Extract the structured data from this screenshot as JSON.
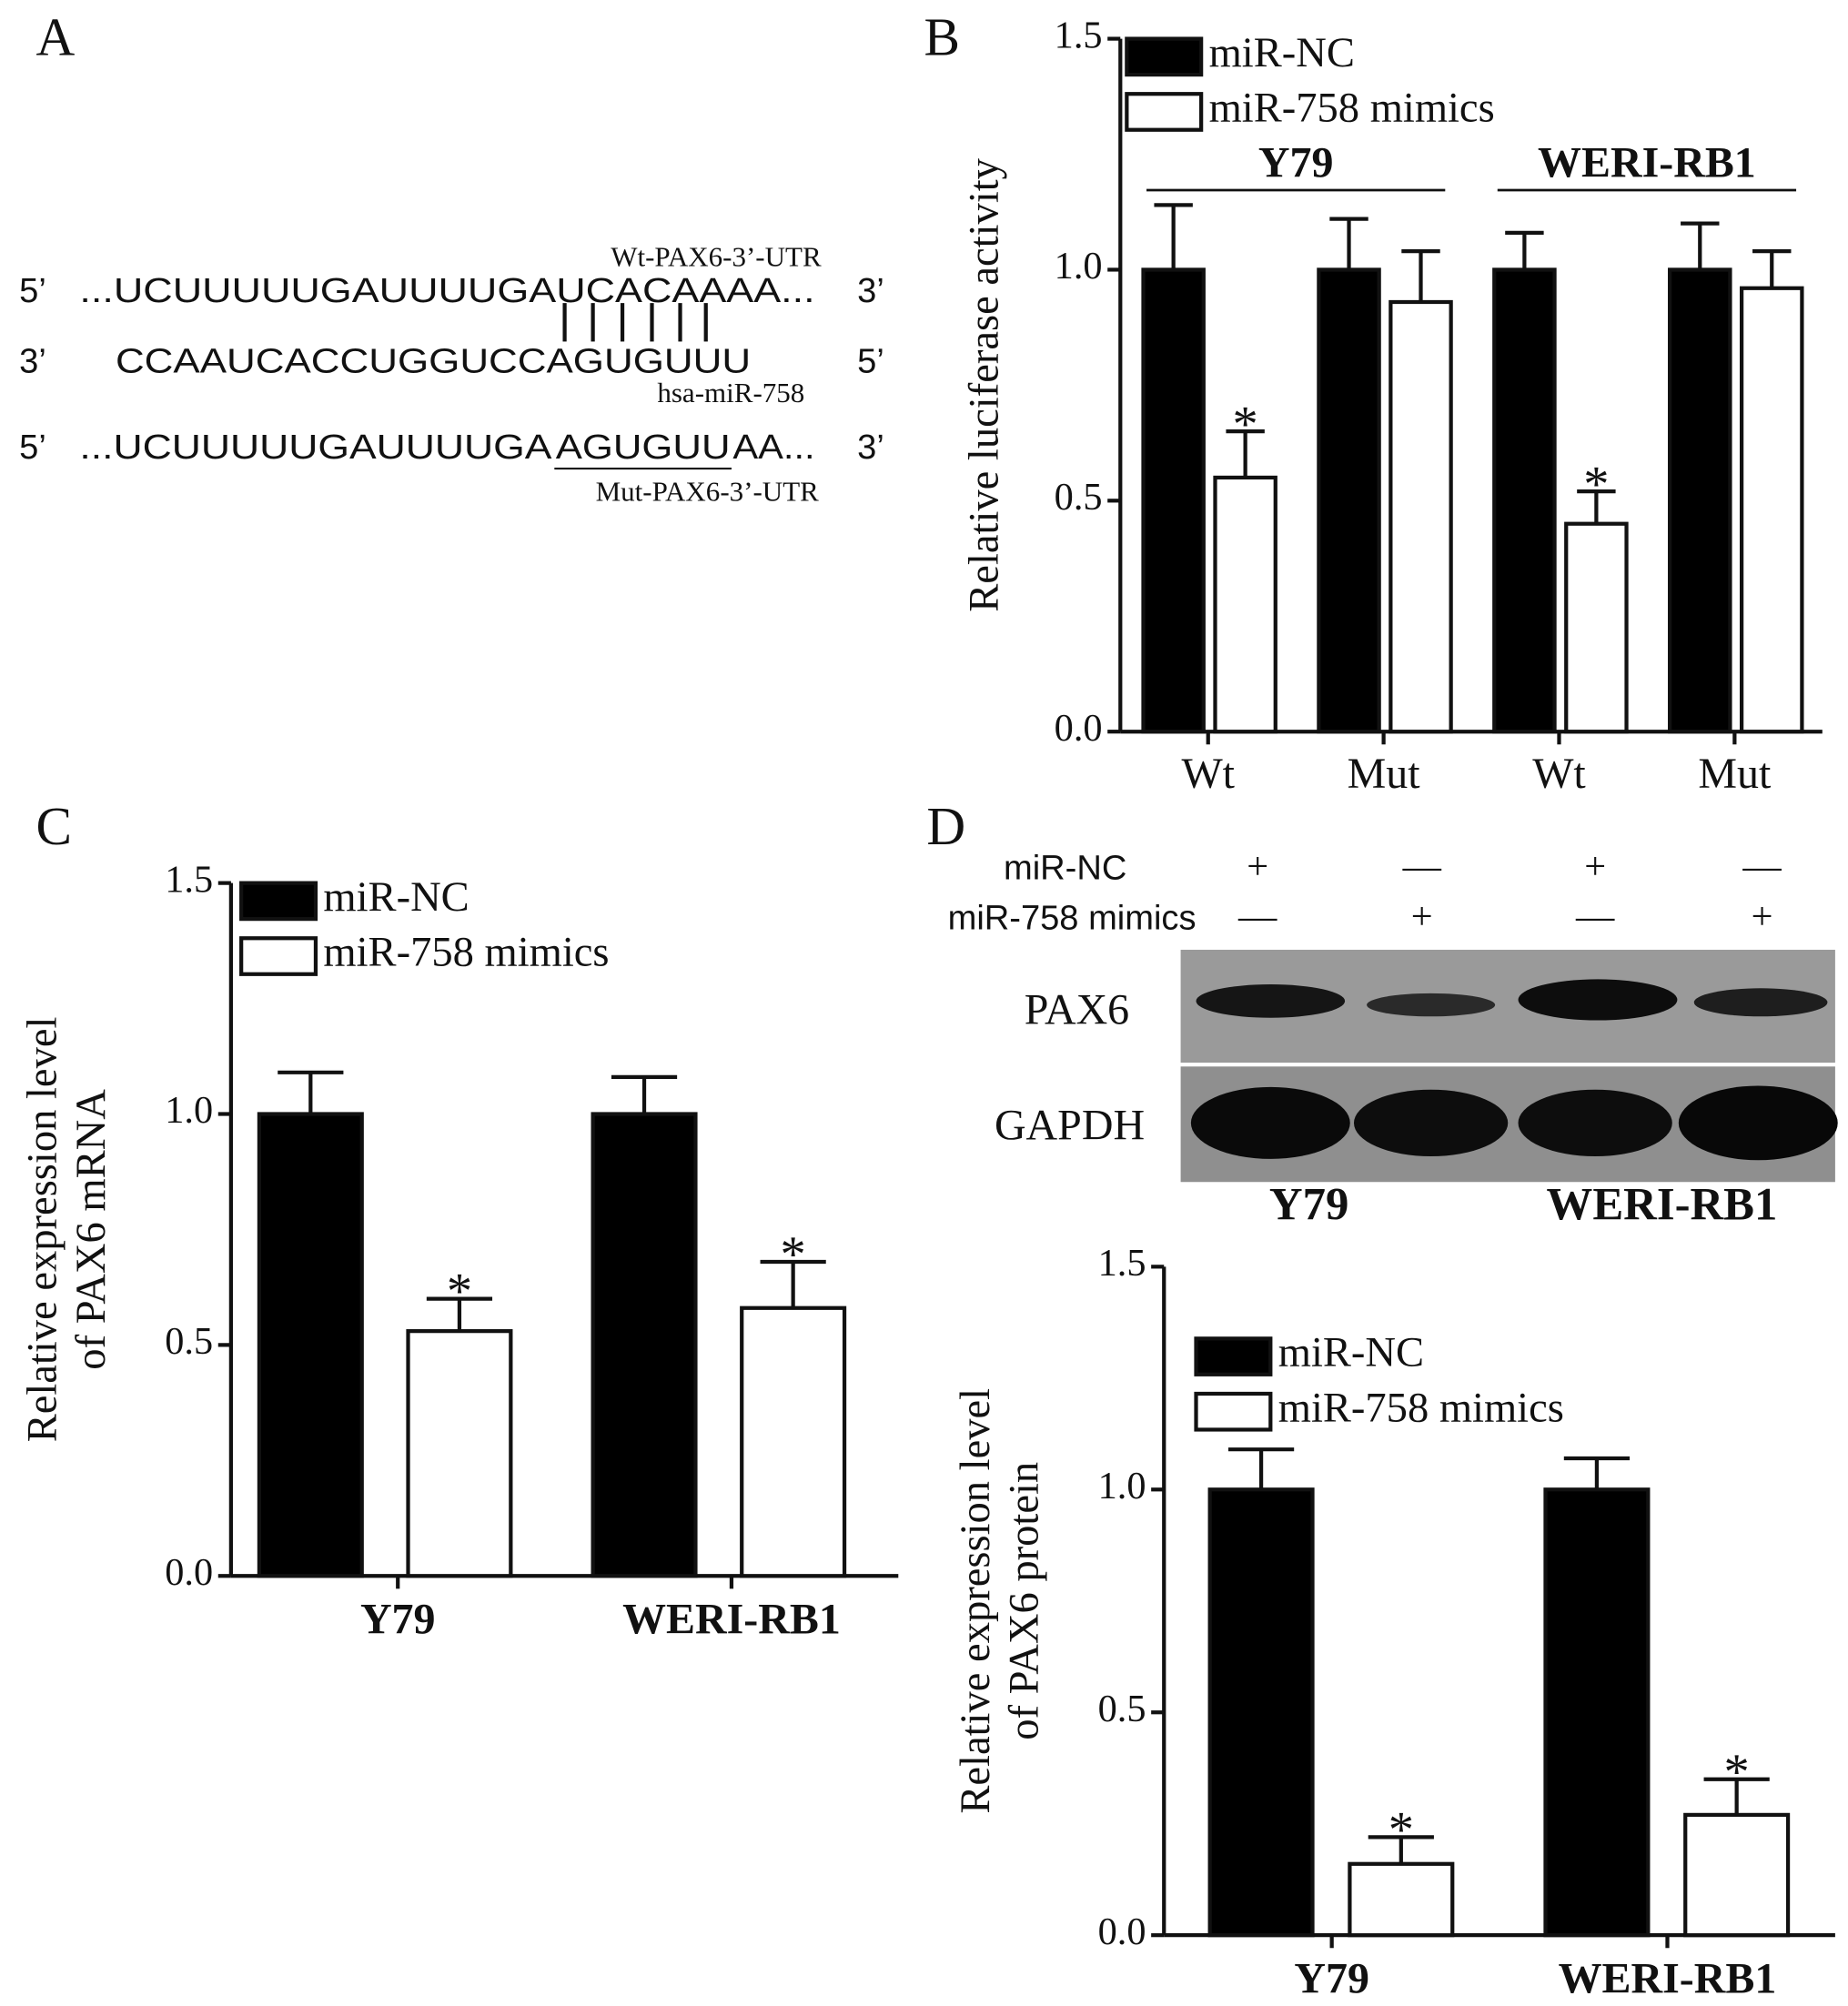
{
  "panel_labels": [
    "A",
    "B",
    "C",
    "D"
  ],
  "sequence_panel": {
    "wt_label": "Wt-PAX6-3’-UTR",
    "row1": {
      "left": "5’",
      "seq": "...UCUUUUUGAUUUUGAUCACAAAA...",
      "right": "3’"
    },
    "row2": {
      "left": "3’",
      "seq": "CCAAUCACCUGGUCCAGUGUUU",
      "right": "5’"
    },
    "mirna_label": "hsa-miR-758",
    "row3": {
      "left": "5’",
      "seq_start": "...UCUUUUUGAUUUUGA",
      "seq_mut": "AGUGUU",
      "seq_end": "AA...",
      "right": "3’"
    },
    "mut_label": "Mut-PAX6-3’-UTR"
  },
  "blot": {
    "rows": [
      {
        "label": "miR-NC",
        "signs": [
          "+",
          "—",
          "+",
          "—"
        ]
      },
      {
        "label": "miR-758 mimics",
        "signs": [
          "—",
          "+",
          "—",
          "+"
        ]
      }
    ],
    "bands": [
      "PAX6",
      "GAPDH"
    ],
    "group_labels": [
      "Y79",
      "WERI-RB1"
    ]
  },
  "chart_data": [
    {
      "type": "bar",
      "ylabel": "Relative luciferase activity",
      "categories": [
        "Wt",
        "Mut",
        "Wt",
        "Mut"
      ],
      "group_labels": [
        "Y79",
        "WERI-RB1"
      ],
      "series": [
        {
          "name": "miR-NC",
          "color": "#000000",
          "values": [
            1,
            1,
            1,
            1
          ],
          "errors": [
            0.14,
            0.11,
            0.08,
            0.1
          ]
        },
        {
          "name": "miR-758 mimics",
          "color": "#ffffff",
          "values": [
            0.55,
            0.93,
            0.45,
            0.96
          ],
          "errors": [
            0.1,
            0.11,
            0.07,
            0.08
          ],
          "significance": [
            "*",
            null,
            "*",
            null
          ]
        }
      ],
      "ylim": [
        0,
        1.5
      ],
      "yticks": [
        {
          "value": 0,
          "label": "0.0"
        },
        0.5,
        {
          "value": 1,
          "label": "1.0"
        },
        1.5
      ]
    },
    {
      "type": "bar",
      "ylabel": [
        "Relative expression level",
        "of PAX6 mRNA"
      ],
      "categories": [
        "Y79",
        "WERI-RB1"
      ],
      "series": [
        {
          "name": "miR-NC",
          "color": "#000000",
          "values": [
            1,
            1
          ],
          "errors": [
            0.09,
            0.08
          ]
        },
        {
          "name": "miR-758 mimics",
          "color": "#ffffff",
          "values": [
            0.53,
            0.58
          ],
          "errors": [
            0.07,
            0.1
          ],
          "significance": [
            "*",
            "*"
          ]
        }
      ],
      "ylim": [
        0,
        1.5
      ],
      "yticks": [
        {
          "value": 0,
          "label": "0.0"
        },
        0.5,
        {
          "value": 1,
          "label": "1.0"
        },
        1.5
      ]
    },
    {
      "type": "bar",
      "ylabel": [
        "Relative expression level",
        "of PAX6 protein"
      ],
      "categories": [
        "Y79",
        "WERI-RB1"
      ],
      "series": [
        {
          "name": "miR-NC",
          "color": "#000000",
          "values": [
            1,
            1
          ],
          "errors": [
            0.09,
            0.07
          ]
        },
        {
          "name": "miR-758 mimics",
          "color": "#ffffff",
          "values": [
            0.16,
            0.27
          ],
          "errors": [
            0.06,
            0.08
          ],
          "significance": [
            "*",
            "*"
          ]
        }
      ],
      "ylim": [
        0,
        1.5
      ],
      "yticks": [
        {
          "value": 0,
          "label": "0.0"
        },
        0.5,
        {
          "value": 1,
          "label": "1.0"
        },
        1.5
      ]
    }
  ]
}
